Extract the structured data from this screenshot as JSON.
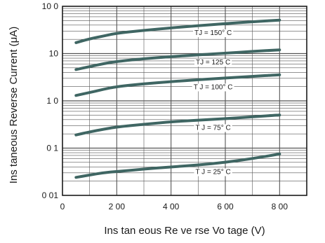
{
  "chart_data": {
    "type": "line",
    "xlabel": "Ins tan eous Re ve rse Vo tage (V)",
    "ylabel": "Ins taneous Reverse Current (μA)",
    "xlim": [
      0,
      900
    ],
    "ylim": [
      0.01,
      100
    ],
    "y_scale": "log",
    "grid": true,
    "x_ticks": [
      {
        "value": 0,
        "label": "0"
      },
      {
        "value": 200,
        "label": "2 00"
      },
      {
        "value": 400,
        "label": "4 00"
      },
      {
        "value": 600,
        "label": "6 00"
      },
      {
        "value": 800,
        "label": "8 00"
      }
    ],
    "y_ticks": [
      {
        "value": 100,
        "label": "10 0"
      },
      {
        "value": 10,
        "label": "10"
      },
      {
        "value": 1,
        "label": "1 0"
      },
      {
        "value": 0.1,
        "label": "0 1"
      },
      {
        "value": 0.01,
        "label": "0 01"
      }
    ],
    "series": [
      {
        "name": "TJ = 150° C",
        "label_at": 555,
        "x": [
          50,
          100,
          150,
          200,
          300,
          400,
          500,
          600,
          700,
          800
        ],
        "y": [
          17,
          20.5,
          23.5,
          27,
          31,
          35,
          39,
          43,
          47,
          51
        ]
      },
      {
        "name": "TJ = 125  C",
        "label_at": 555,
        "x": [
          50,
          100,
          150,
          200,
          300,
          400,
          500,
          600,
          700,
          800
        ],
        "y": [
          4.6,
          5.3,
          6.1,
          6.8,
          7.8,
          8.6,
          9.4,
          10.2,
          11.1,
          12
        ]
      },
      {
        "name": "T J = 100° C",
        "label_at": 555,
        "x": [
          50,
          100,
          150,
          200,
          300,
          400,
          500,
          600,
          700,
          800
        ],
        "y": [
          1.3,
          1.5,
          1.75,
          2.0,
          2.3,
          2.55,
          2.8,
          3.05,
          3.3,
          3.55
        ]
      },
      {
        "name": "T J = 75° C",
        "label_at": 555,
        "x": [
          50,
          100,
          150,
          200,
          300,
          400,
          500,
          600,
          700,
          800
        ],
        "y": [
          0.19,
          0.22,
          0.25,
          0.28,
          0.32,
          0.36,
          0.39,
          0.42,
          0.46,
          0.5
        ]
      },
      {
        "name": "T J = 25° C",
        "label_at": 555,
        "x": [
          50,
          100,
          150,
          200,
          300,
          400,
          500,
          600,
          700,
          800
        ],
        "y": [
          0.024,
          0.027,
          0.03,
          0.032,
          0.036,
          0.04,
          0.044,
          0.05,
          0.06,
          0.075
        ]
      }
    ],
    "colors": {
      "curve": "#3f6663",
      "grid": "#555555",
      "frame": "#1a1a1a"
    }
  }
}
